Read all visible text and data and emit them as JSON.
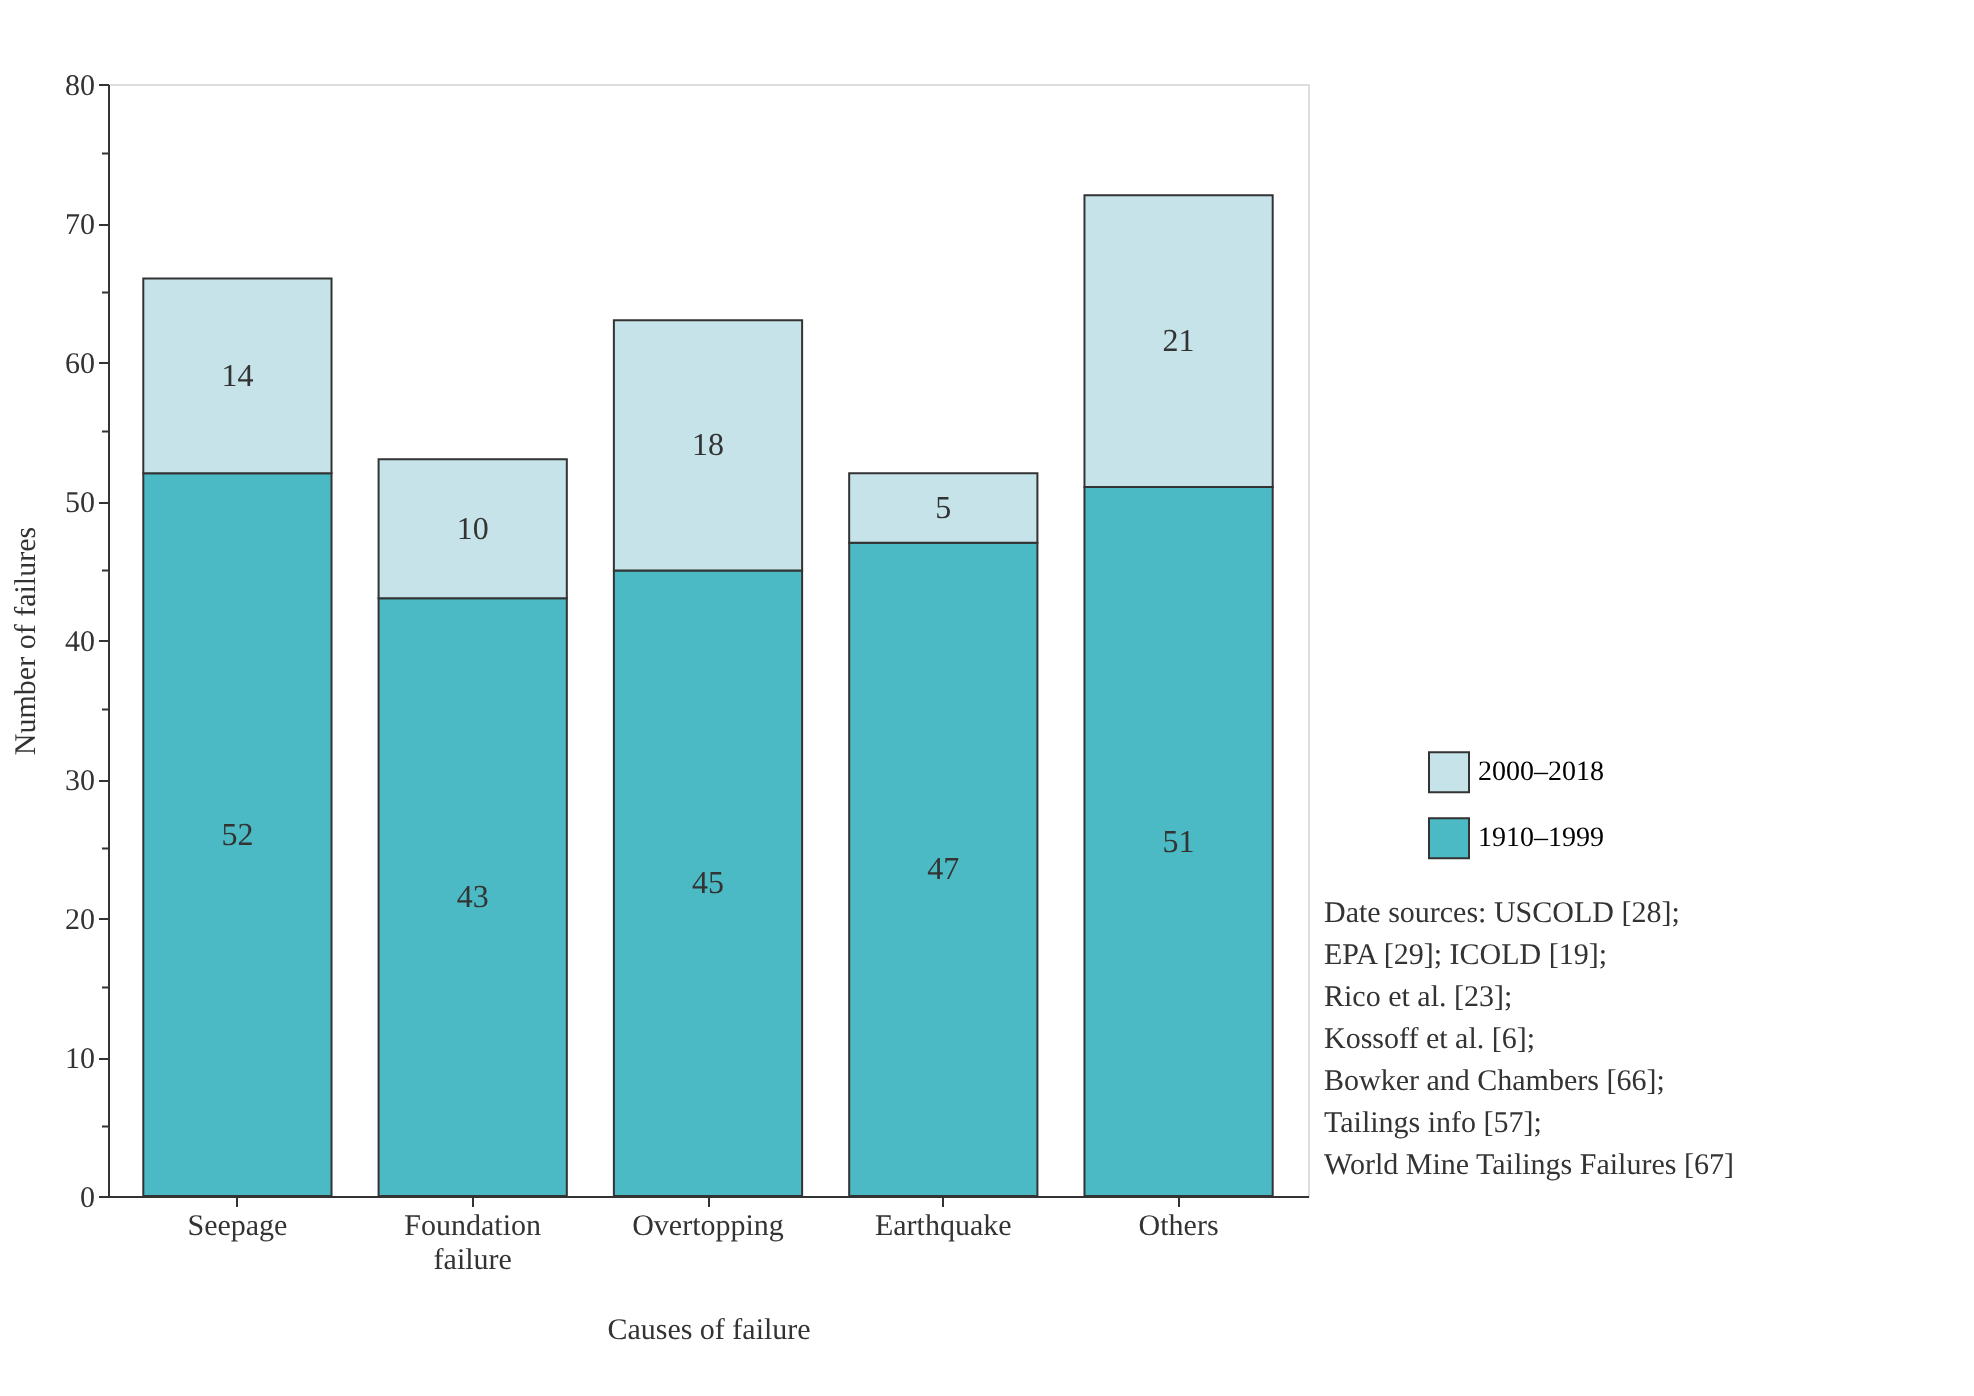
{
  "chart_data": {
    "type": "bar",
    "stacked": true,
    "data_labels": true,
    "grid": false,
    "legend": "right",
    "xlabel": "Causes of failure",
    "ylabel": "Number of failures",
    "categories": [
      "Seepage",
      "Foundation failure",
      "Overtopping",
      "Earthquake",
      "Others"
    ],
    "series": [
      {
        "name": "1910–1999",
        "color": "#4bbac4",
        "values": [
          52,
          43,
          45,
          47,
          51
        ]
      },
      {
        "name": "2000–2018",
        "color": "#c5e3e8",
        "values": [
          14,
          10,
          18,
          5,
          21
        ]
      }
    ],
    "ylim": [
      0,
      80
    ],
    "yticks": [
      0,
      {
        "value": 5,
        "label": null
      },
      10,
      {
        "value": 15,
        "label": null
      },
      20,
      {
        "value": 25,
        "label": null
      },
      30,
      {
        "value": 35,
        "label": null
      },
      40,
      {
        "value": 45,
        "label": null
      },
      50,
      {
        "value": 55,
        "label": null
      },
      60,
      {
        "value": 65,
        "label": null
      },
      70,
      {
        "value": 75,
        "label": null
      },
      80
    ],
    "annotations": [
      "Date sources: USCOLD [28];",
      "EPA [29]; ICOLD [19];",
      "Rico et al. [23];",
      "Kossoff et al. [6];",
      "Bowker and Chambers [66];",
      "Tailings info [57];",
      "World Mine Tailings Failures [67]"
    ]
  }
}
